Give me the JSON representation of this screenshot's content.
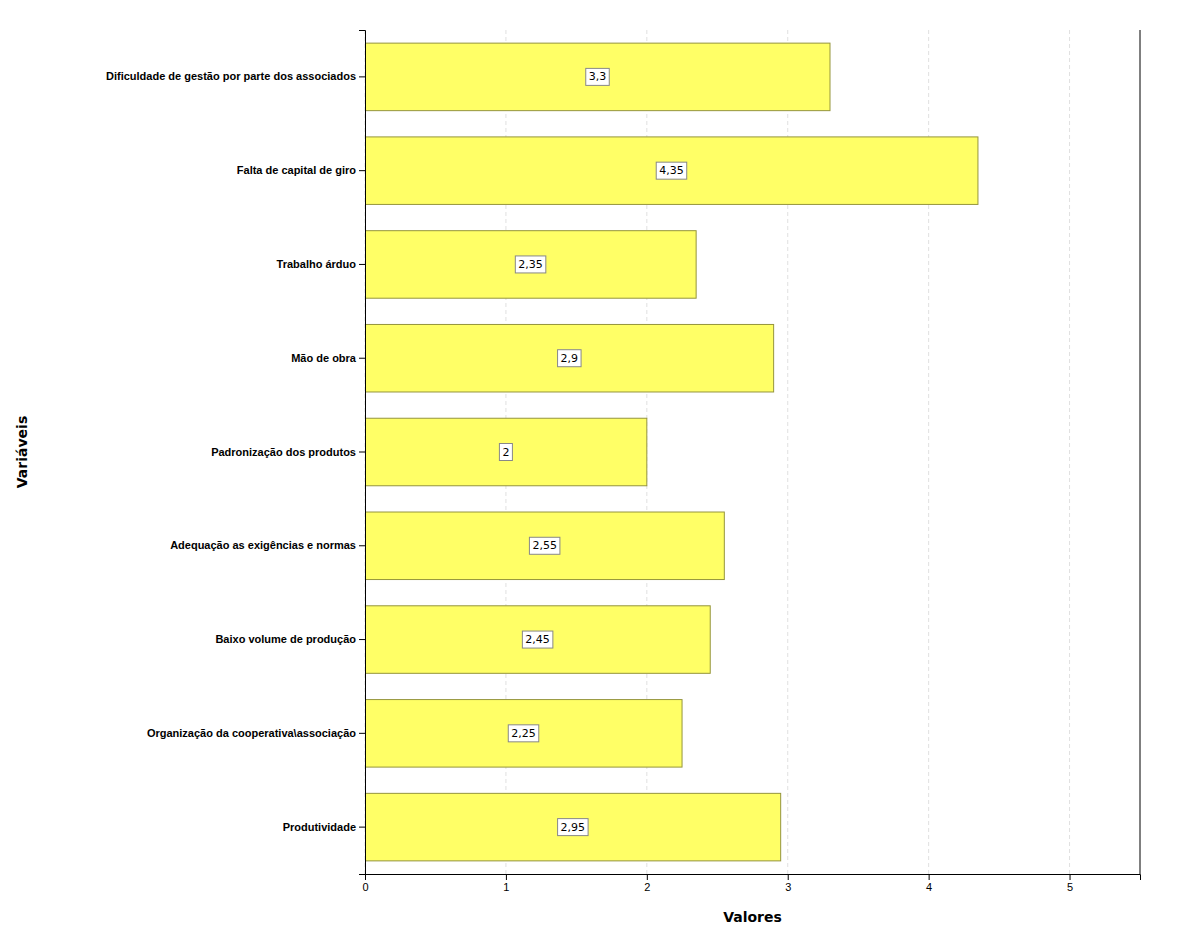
{
  "chart_data": {
    "type": "bar",
    "orientation": "horizontal",
    "categories": [
      "Produtividade",
      "Organização da cooperativa\\associação",
      "Baixo volume de produção",
      "Adequação as exigências e normas",
      "Padronização dos produtos",
      "Mão de obra",
      "Trabalho árduo",
      "Falta de capital de giro",
      "Dificuldade de gestão por parte dos associados"
    ],
    "values": [
      2.95,
      2.25,
      2.45,
      2.55,
      2.0,
      2.9,
      2.35,
      4.35,
      3.3
    ],
    "value_labels": [
      "2,95",
      "2,25",
      "2,45",
      "2,55",
      "2",
      "2,9",
      "2,35",
      "4,35",
      "3,3"
    ],
    "data_labels": true,
    "color": "#FFFF66",
    "xlabel": "Valores",
    "ylabel": "Variáveis",
    "xlim": [
      0,
      5.5
    ],
    "xticks": [
      0,
      1,
      2,
      3,
      4,
      5
    ],
    "grid": true
  }
}
